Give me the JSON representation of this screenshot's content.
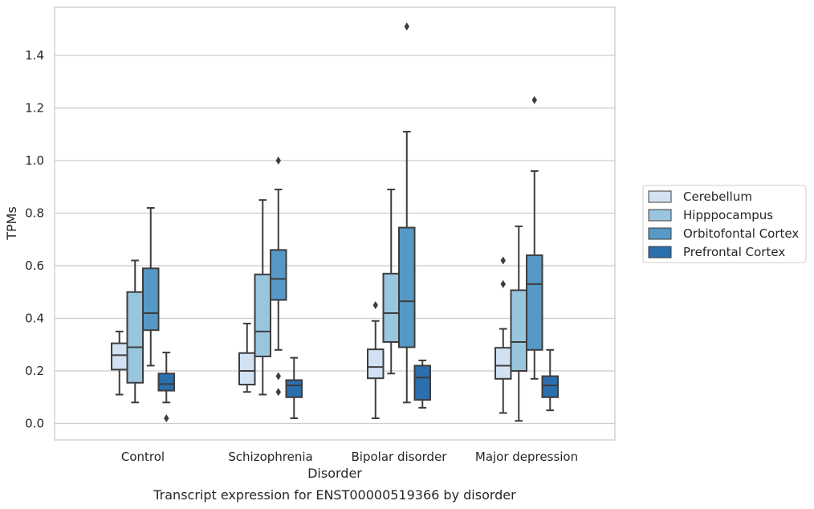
{
  "chart_data": {
    "type": "box",
    "xlabel": "Disorder",
    "ylabel": "TPMs",
    "caption": "Transcript expression for ENST00000519366 by disorder",
    "categories": [
      "Control",
      "Schizophrenia",
      "Bipolar disorder",
      "Major depression"
    ],
    "ylim": [
      -0.06,
      1.58
    ],
    "yticks": [
      0.0,
      0.2,
      0.4,
      0.6,
      0.8,
      1.0,
      1.2,
      1.4
    ],
    "ytick_labels": [
      "0.0",
      "0.2",
      "0.4",
      "0.6",
      "0.8",
      "1.0",
      "1.2",
      "1.4"
    ],
    "grid": "horizontal",
    "legend_position": "right",
    "series": [
      {
        "name": "Cerebellum",
        "color": "#d1e2f2",
        "boxes": [
          {
            "whislo": 0.11,
            "q1": 0.205,
            "med": 0.26,
            "q3": 0.305,
            "whishi": 0.35,
            "fliers": []
          },
          {
            "whislo": 0.12,
            "q1": 0.148,
            "med": 0.2,
            "q3": 0.268,
            "whishi": 0.38,
            "fliers": []
          },
          {
            "whislo": 0.02,
            "q1": 0.172,
            "med": 0.215,
            "q3": 0.282,
            "whishi": 0.39,
            "fliers": [
              0.45
            ]
          },
          {
            "whislo": 0.04,
            "q1": 0.17,
            "med": 0.22,
            "q3": 0.288,
            "whishi": 0.36,
            "fliers": [
              0.53,
              0.62
            ]
          }
        ]
      },
      {
        "name": "Hipppocampus",
        "color": "#9ac5de",
        "boxes": [
          {
            "whislo": 0.08,
            "q1": 0.155,
            "med": 0.29,
            "q3": 0.5,
            "whishi": 0.62,
            "fliers": []
          },
          {
            "whislo": 0.11,
            "q1": 0.255,
            "med": 0.35,
            "q3": 0.567,
            "whishi": 0.85,
            "fliers": []
          },
          {
            "whislo": 0.19,
            "q1": 0.31,
            "med": 0.42,
            "q3": 0.57,
            "whishi": 0.89,
            "fliers": []
          },
          {
            "whislo": 0.01,
            "q1": 0.2,
            "med": 0.31,
            "q3": 0.507,
            "whishi": 0.75,
            "fliers": []
          }
        ]
      },
      {
        "name": "Orbitofontal Cortex",
        "color": "#5698c6",
        "boxes": [
          {
            "whislo": 0.22,
            "q1": 0.355,
            "med": 0.42,
            "q3": 0.59,
            "whishi": 0.82,
            "fliers": []
          },
          {
            "whislo": 0.28,
            "q1": 0.47,
            "med": 0.55,
            "q3": 0.66,
            "whishi": 0.89,
            "fliers": [
              1.0,
              0.18,
              0.12
            ]
          },
          {
            "whislo": 0.08,
            "q1": 0.29,
            "med": 0.465,
            "q3": 0.745,
            "whishi": 1.11,
            "fliers": [
              1.51
            ]
          },
          {
            "whislo": 0.17,
            "q1": 0.28,
            "med": 0.53,
            "q3": 0.64,
            "whishi": 0.96,
            "fliers": [
              1.23
            ]
          }
        ]
      },
      {
        "name": "Prefrontal Cortex",
        "color": "#2b6fae",
        "boxes": [
          {
            "whislo": 0.08,
            "q1": 0.125,
            "med": 0.15,
            "q3": 0.19,
            "whishi": 0.27,
            "fliers": [
              0.02
            ]
          },
          {
            "whislo": 0.02,
            "q1": 0.1,
            "med": 0.145,
            "q3": 0.165,
            "whishi": 0.25,
            "fliers": []
          },
          {
            "whislo": 0.06,
            "q1": 0.09,
            "med": 0.175,
            "q3": 0.22,
            "whishi": 0.24,
            "fliers": []
          },
          {
            "whislo": 0.05,
            "q1": 0.1,
            "med": 0.145,
            "q3": 0.18,
            "whishi": 0.28,
            "fliers": []
          }
        ]
      }
    ]
  }
}
